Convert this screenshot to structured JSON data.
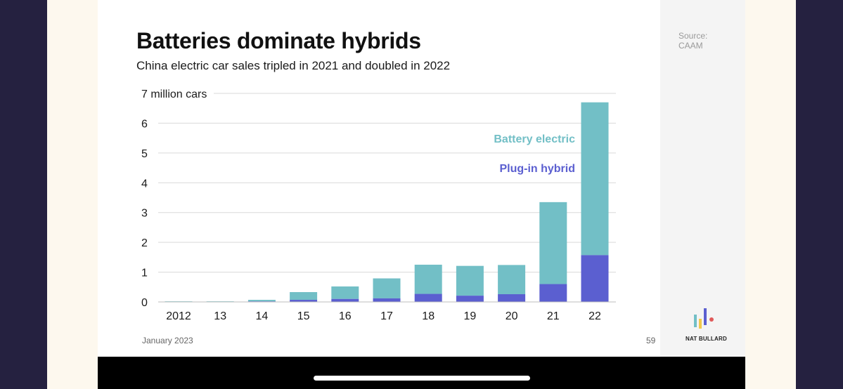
{
  "slide": {
    "title": "Batteries dominate hybrids",
    "subtitle": "China electric car sales tripled in 2021 and doubled in 2022",
    "source_line1": "Source:",
    "source_line2": "CAAM",
    "date": "January 2023",
    "page_number": "59",
    "brand": "NAT BULLARD",
    "brand_logo_icon": "bar-logo-icon"
  },
  "colors": {
    "battery_electric": "#72bfc6",
    "plug_in_hybrid": "#5b5fd0",
    "gridline": "#d9d9d9",
    "text": "#1a1a1a"
  },
  "chart_data": {
    "type": "bar",
    "stacked": true,
    "title": "Batteries dominate hybrids",
    "subtitle": "China electric car sales tripled in 2021 and doubled in 2022",
    "categories": [
      "2012",
      "13",
      "14",
      "15",
      "16",
      "17",
      "18",
      "19",
      "20",
      "21",
      "22"
    ],
    "series": [
      {
        "name": "Plug-in hybrid",
        "values": [
          0.01,
          0.01,
          0.02,
          0.07,
          0.1,
          0.12,
          0.27,
          0.21,
          0.26,
          0.6,
          1.57
        ]
      },
      {
        "name": "Battery electric",
        "values": [
          0.01,
          0.01,
          0.05,
          0.26,
          0.42,
          0.67,
          0.98,
          1.0,
          0.98,
          2.75,
          5.13
        ]
      }
    ],
    "y_ticks": [
      "0",
      "1",
      "2",
      "3",
      "4",
      "5",
      "6",
      "7 million cars"
    ],
    "ylim": [
      0,
      7
    ],
    "grid": true,
    "legend": "inline-labels"
  }
}
